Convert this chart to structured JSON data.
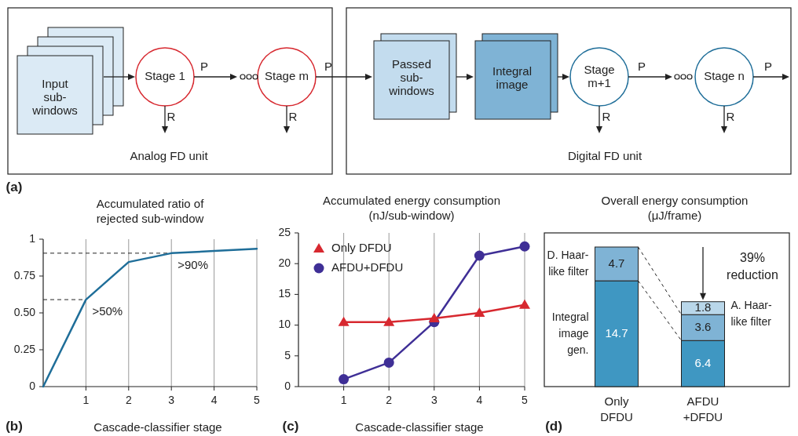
{
  "chart_data": [
    {
      "type": "other",
      "annotations": [
        "Input sub-windows",
        "Stage 1",
        "P",
        "Stage m",
        "P",
        "R",
        "R",
        "Analog FD unit",
        "Passed sub-windows",
        "Integral image",
        "Stage m+1",
        "P",
        "Stage n",
        "P",
        "R",
        "R",
        "Digital FD unit",
        "(a)"
      ]
    },
    {
      "type": "line",
      "title": "Accumulated ratio of rejected sub-window",
      "xlabel": "Cascade-classifier stage",
      "x": [
        0,
        1,
        2,
        3,
        4,
        5
      ],
      "values": [
        0,
        0.59,
        0.845,
        0.905,
        0.92,
        0.935
      ],
      "color": "#1f6e99",
      "xlim": [
        0,
        5
      ],
      "xticks": [
        1,
        2,
        3,
        4,
        5
      ],
      "ylim": [
        0,
        1
      ],
      "yticks": [
        0,
        {
          "value": 0.25,
          "label": "0.25"
        },
        {
          "value": 0.5,
          "label": "0.50"
        },
        {
          "value": 0.75,
          "label": "0.75"
        },
        1
      ],
      "grid": "x",
      "ref_lines": [
        {
          "axis": "y",
          "value": 0.59,
          "line_style": "dashed"
        },
        {
          "axis": "y",
          "value": 0.905,
          "line_style": "dashed"
        }
      ],
      "annotations": [
        {
          "text": ">50%",
          "x": 1,
          "y": 0.59
        },
        {
          "text": ">90%",
          "x": 3,
          "y": 0.905
        },
        "(b)"
      ]
    },
    {
      "type": "line",
      "title": "Accumulated energy consumption (nJ/sub-window)",
      "xlabel": "Cascade-classifier stage",
      "x": [
        1,
        2,
        3,
        4,
        5
      ],
      "series": [
        {
          "name": "Only DFDU",
          "color": "#d7282f",
          "marker": "triangle",
          "values": [
            10.5,
            10.5,
            11.1,
            12,
            13.3
          ]
        },
        {
          "name": "AFDU+DFDU",
          "color": "#3f2f96",
          "marker": "circle",
          "values": [
            1.2,
            3.9,
            10.5,
            21.3,
            22.8
          ]
        }
      ],
      "xlim": [
        0,
        5
      ],
      "xticks": [
        1,
        2,
        3,
        4,
        5
      ],
      "ylim": [
        0,
        25
      ],
      "yticks": [
        0,
        5,
        10,
        15,
        20,
        25
      ],
      "grid": "x",
      "legend": "top left",
      "annotations": [
        "(c)"
      ]
    },
    {
      "type": "bar",
      "stacked": true,
      "title": "Overall energy consumption (μJ/frame)",
      "categories": [
        "Only DFDU",
        "AFDU +DFDU"
      ],
      "series": [
        {
          "name": "Integral image gen.",
          "color": "#3f97c2",
          "values": [
            14.7,
            6.4
          ]
        },
        {
          "name": "D. Haar-like filter",
          "color": "#7fb3d5",
          "values": [
            4.7,
            3.6
          ]
        },
        {
          "name": "A. Haar-like filter",
          "color": "#b9d7ea",
          "values": [
            null,
            1.8
          ]
        }
      ],
      "data_labels": true,
      "annotations": [
        "39% reduction",
        "(d)"
      ]
    }
  ]
}
